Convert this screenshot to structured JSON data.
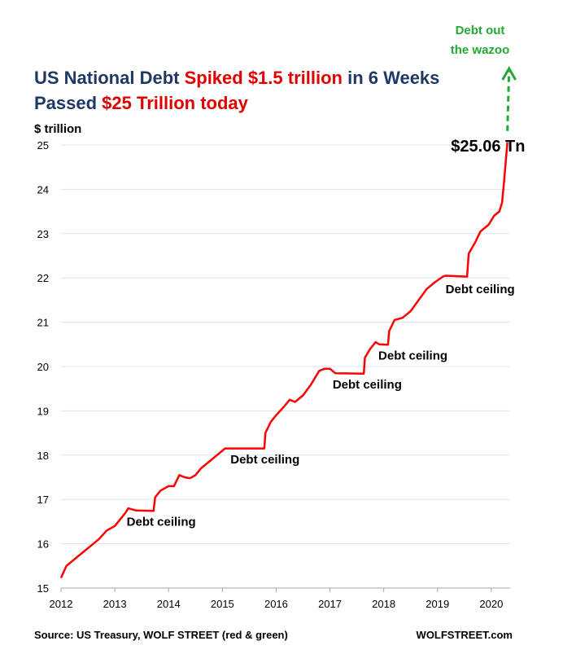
{
  "chart_data": {
    "type": "line",
    "title_line1": [
      {
        "text": "US National Debt ",
        "color": "#1f3864"
      },
      {
        "text": "Spiked $1.5 trillion",
        "color": "#e00000"
      },
      {
        "text": " in 6 Weeks",
        "color": "#1f3864"
      }
    ],
    "title_line2": [
      {
        "text": "Passed ",
        "color": "#1f3864"
      },
      {
        "text": "$25 Trillion today",
        "color": "#e00000"
      }
    ],
    "ylabel": "$ trillion",
    "xlabel": "",
    "ylim": [
      15,
      25
    ],
    "xlim": [
      2012,
      2020.35
    ],
    "y_ticks": [
      "15",
      "16",
      "17",
      "18",
      "19",
      "20",
      "21",
      "22",
      "23",
      "24",
      "25"
    ],
    "x_ticks": [
      "2012",
      "2013",
      "2014",
      "2015",
      "2016",
      "2017",
      "2018",
      "2019",
      "2020"
    ],
    "grid": "horizontal",
    "series": [
      {
        "color": "#ff0000",
        "points": [
          [
            2012.0,
            15.23
          ],
          [
            2012.1,
            15.5
          ],
          [
            2012.25,
            15.65
          ],
          [
            2012.4,
            15.8
          ],
          [
            2012.55,
            15.95
          ],
          [
            2012.7,
            16.1
          ],
          [
            2012.85,
            16.3
          ],
          [
            2013.0,
            16.4
          ],
          [
            2013.1,
            16.55
          ],
          [
            2013.2,
            16.7
          ],
          [
            2013.25,
            16.8
          ],
          [
            2013.4,
            16.75
          ],
          [
            2013.72,
            16.74
          ],
          [
            2013.75,
            17.05
          ],
          [
            2013.85,
            17.2
          ],
          [
            2014.0,
            17.3
          ],
          [
            2014.1,
            17.3
          ],
          [
            2014.2,
            17.55
          ],
          [
            2014.3,
            17.5
          ],
          [
            2014.4,
            17.48
          ],
          [
            2014.5,
            17.55
          ],
          [
            2014.6,
            17.7
          ],
          [
            2014.75,
            17.85
          ],
          [
            2014.9,
            18.0
          ],
          [
            2015.0,
            18.1
          ],
          [
            2015.05,
            18.15
          ],
          [
            2015.78,
            18.15
          ],
          [
            2015.8,
            18.5
          ],
          [
            2015.9,
            18.75
          ],
          [
            2016.0,
            18.9
          ],
          [
            2016.15,
            19.1
          ],
          [
            2016.25,
            19.25
          ],
          [
            2016.35,
            19.2
          ],
          [
            2016.5,
            19.35
          ],
          [
            2016.65,
            19.6
          ],
          [
            2016.8,
            19.9
          ],
          [
            2016.9,
            19.95
          ],
          [
            2017.0,
            19.95
          ],
          [
            2017.1,
            19.85
          ],
          [
            2017.63,
            19.84
          ],
          [
            2017.65,
            20.2
          ],
          [
            2017.75,
            20.4
          ],
          [
            2017.85,
            20.55
          ],
          [
            2017.92,
            20.5
          ],
          [
            2018.08,
            20.49
          ],
          [
            2018.1,
            20.8
          ],
          [
            2018.2,
            21.05
          ],
          [
            2018.35,
            21.1
          ],
          [
            2018.5,
            21.25
          ],
          [
            2018.65,
            21.5
          ],
          [
            2018.8,
            21.75
          ],
          [
            2018.95,
            21.9
          ],
          [
            2019.1,
            22.03
          ],
          [
            2019.15,
            22.05
          ],
          [
            2019.55,
            22.03
          ],
          [
            2019.58,
            22.55
          ],
          [
            2019.7,
            22.8
          ],
          [
            2019.8,
            23.05
          ],
          [
            2019.95,
            23.2
          ],
          [
            2020.05,
            23.4
          ],
          [
            2020.15,
            23.5
          ],
          [
            2020.2,
            23.7
          ],
          [
            2020.24,
            24.2
          ],
          [
            2020.28,
            24.8
          ],
          [
            2020.3,
            25.06
          ]
        ]
      }
    ],
    "annotations": [
      {
        "text": "Debt ceiling",
        "x": 2013.22,
        "y": 16.5
      },
      {
        "text": "Debt ceiling",
        "x": 2015.15,
        "y": 17.9
      },
      {
        "text": "Debt ceiling",
        "x": 2017.05,
        "y": 19.6
      },
      {
        "text": "Debt ceiling",
        "x": 2017.9,
        "y": 20.25
      },
      {
        "text": "Debt ceiling",
        "x": 2019.15,
        "y": 21.75
      }
    ],
    "value_label": {
      "text": "$25.06 Tn",
      "x": 2019.25,
      "y": 24.85
    },
    "green_annotation": {
      "line1": "Debt out",
      "line2": "the wazoo",
      "color": "#22aa33"
    },
    "footer_left": "Source: US Treasury, WOLF STREET (red & green)",
    "footer_right": "WOLFSTREET.com"
  }
}
